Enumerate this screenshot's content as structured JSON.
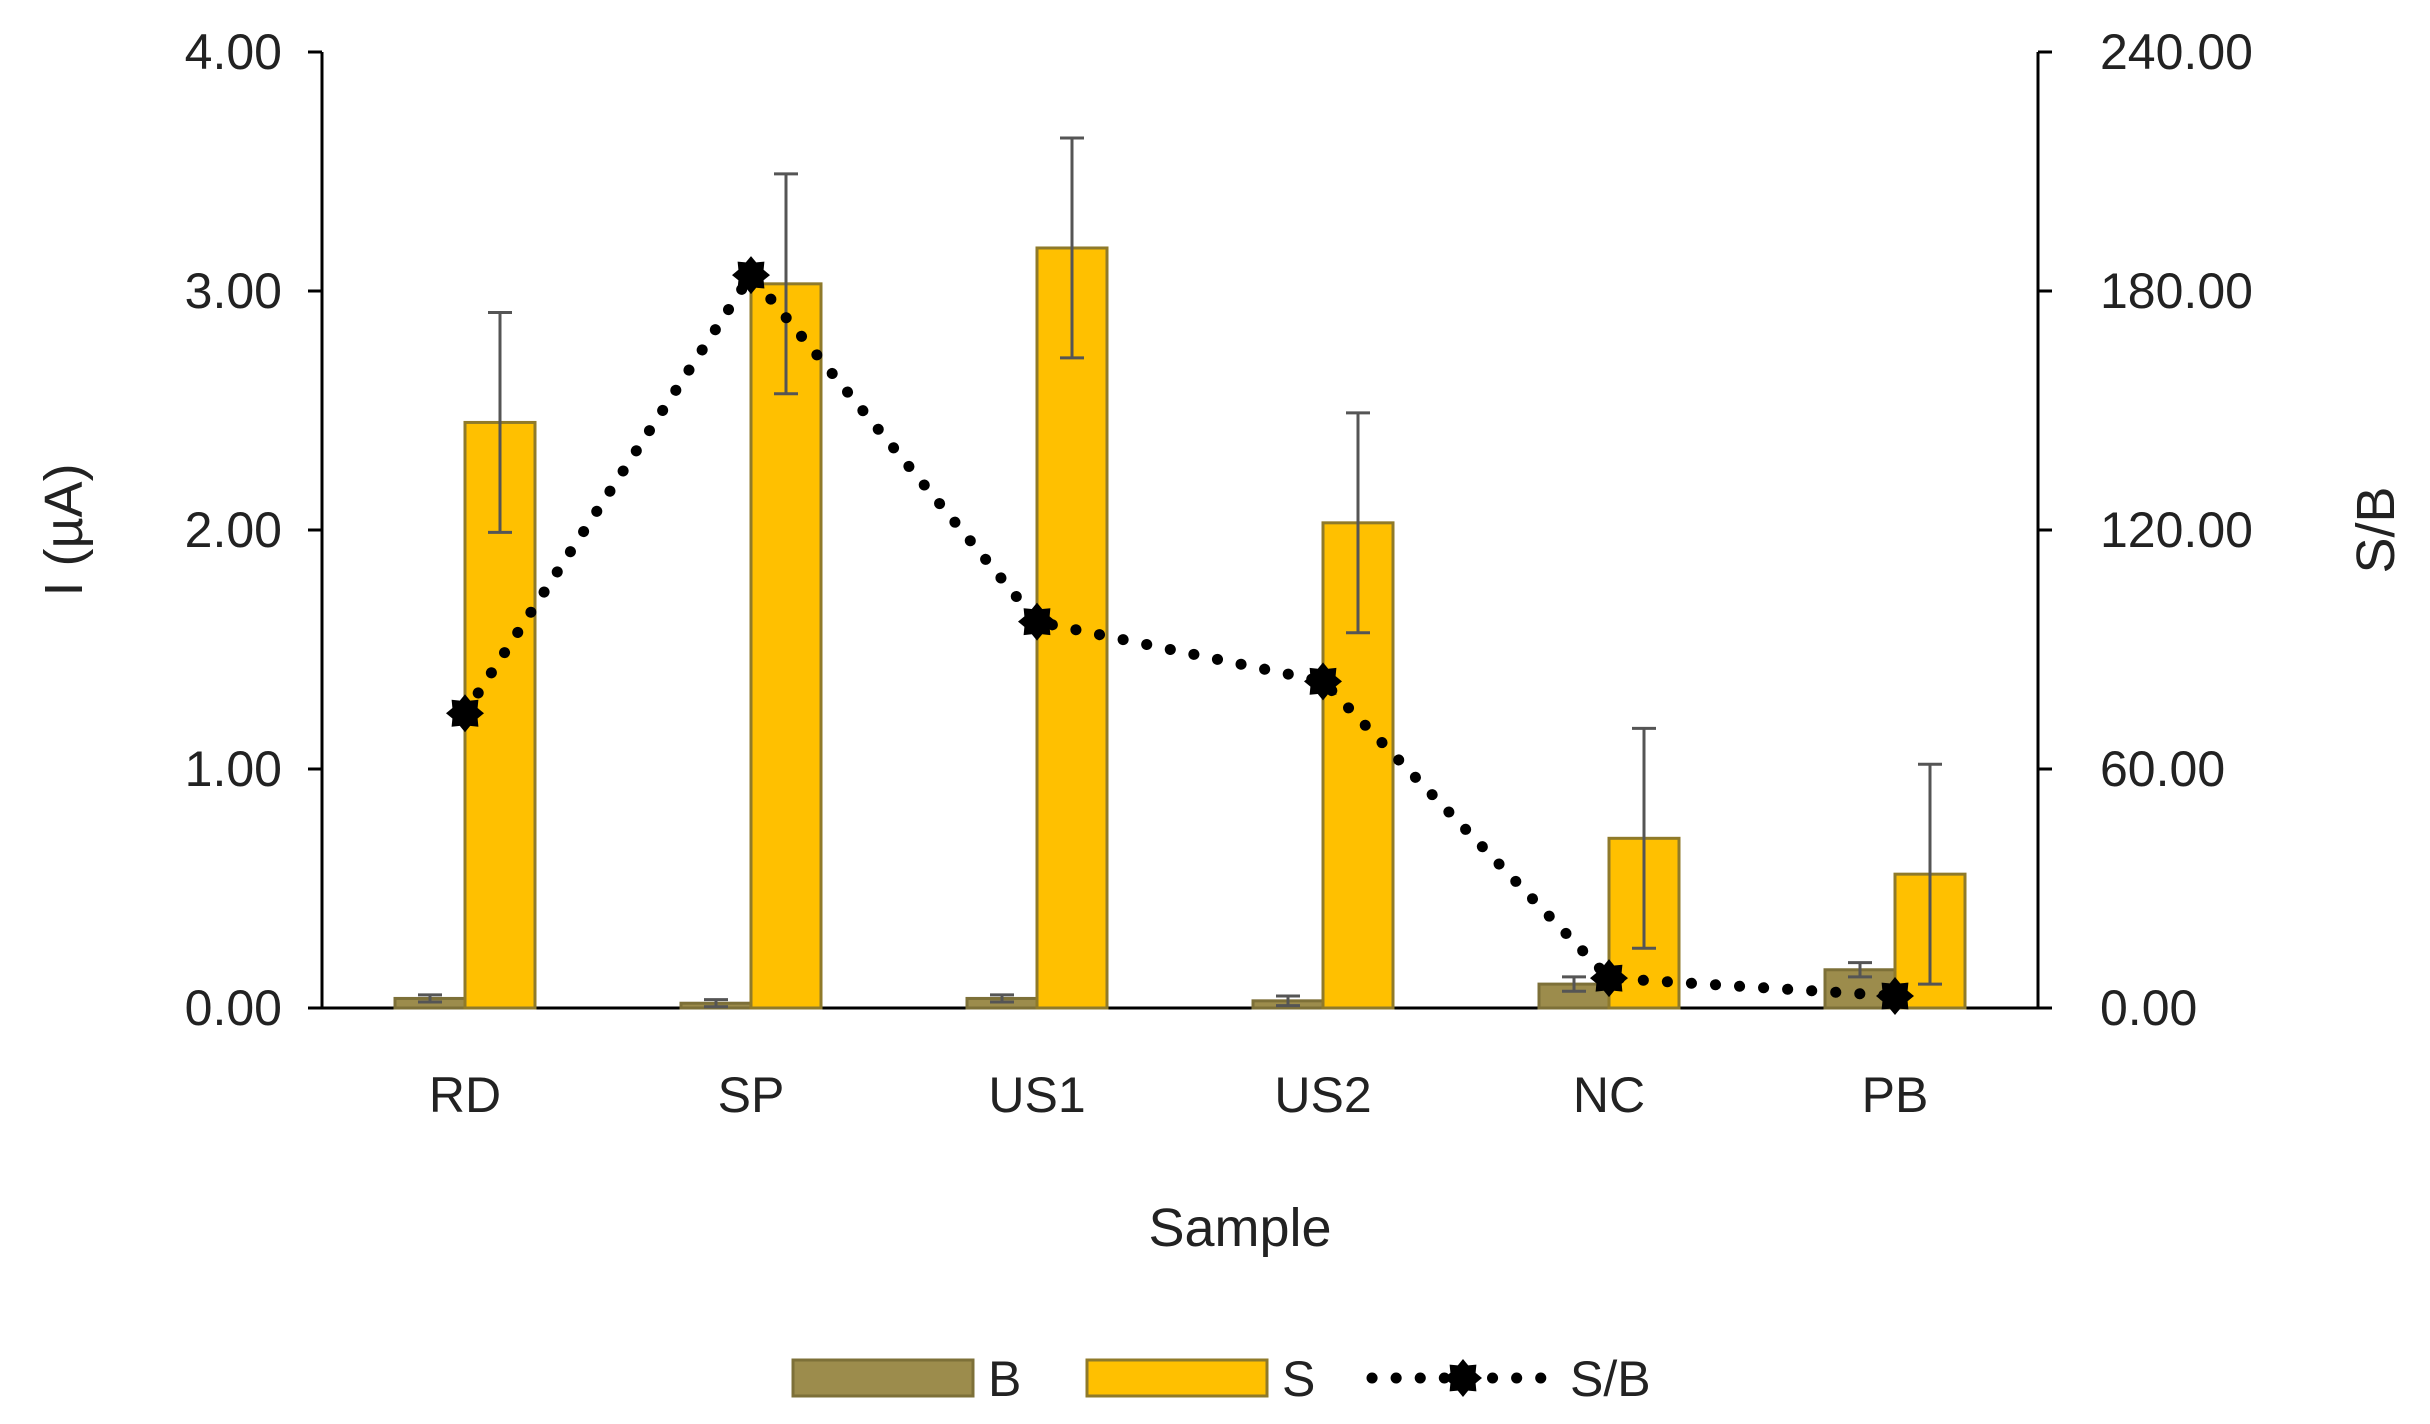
{
  "chart_data": {
    "type": "bar",
    "xlabel": "Sample",
    "ylabel": "I (µA)",
    "y2label": "S/B",
    "categories": [
      "RD",
      "SP",
      "US1",
      "US2",
      "NC",
      "PB"
    ],
    "ylim": [
      0,
      4
    ],
    "y2lim": [
      0,
      240
    ],
    "yticks": [
      "0.00",
      "1.00",
      "2.00",
      "3.00",
      "4.00"
    ],
    "y2ticks": [
      "0.00",
      "60.00",
      "120.00",
      "180.00",
      "240.00"
    ],
    "series": [
      {
        "name": "B",
        "kind": "bar",
        "axis": "left",
        "color": "#9c8c4c",
        "edge": "#7d7038",
        "values": [
          0.04,
          0.02,
          0.04,
          0.03,
          0.1,
          0.16
        ],
        "errors": [
          0.015,
          0.015,
          0.015,
          0.02,
          0.03,
          0.03
        ]
      },
      {
        "name": "S",
        "kind": "bar",
        "axis": "left",
        "color": "#ffc000",
        "edge": "#8f7a2a",
        "values": [
          2.45,
          3.03,
          3.18,
          2.03,
          0.71,
          0.56
        ],
        "errors": [
          0.46,
          0.46,
          0.46,
          0.46,
          0.46,
          0.46
        ]
      },
      {
        "name": "S/B",
        "kind": "line",
        "axis": "right",
        "color": "#000000",
        "values": [
          74,
          184,
          97,
          82,
          7.5,
          3
        ]
      }
    ],
    "legend": "bottom",
    "grid": false
  }
}
